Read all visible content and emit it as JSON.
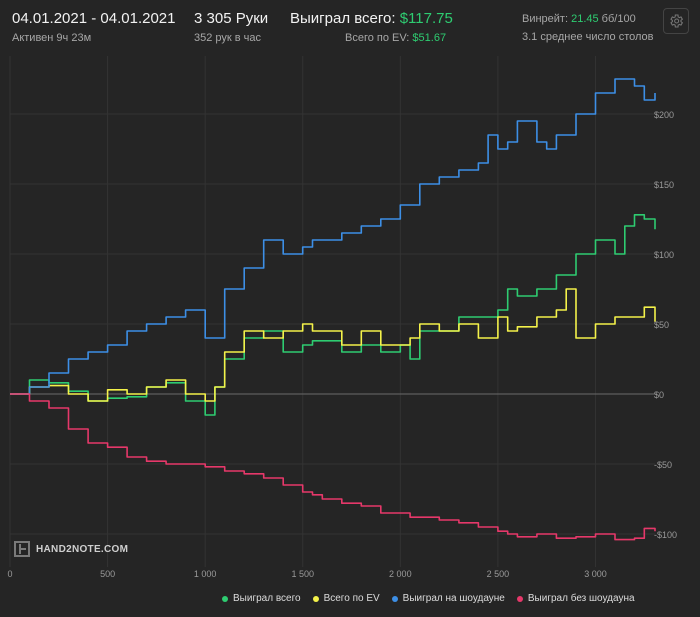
{
  "header": {
    "date_range": "04.01.2021 - 04.01.2021",
    "active": "Активен 9ч 23м",
    "hands": "3 305 Руки",
    "hands_per_hour": "352 рук в час",
    "won_label": "Выиграл всего: ",
    "won_value": "$117.75",
    "ev_label": "Всего по EV: ",
    "ev_value": "$51.67",
    "winrate_label": "Винрейт: ",
    "winrate_value": "21.45",
    "winrate_unit": " бб/100",
    "tables": "3.1 среднее число столов"
  },
  "logo_text": "HAND2NOTE.COM",
  "colors": {
    "background": "#252525",
    "green": "#2ecc71",
    "yellow": "#f4f24a",
    "blue": "#3d8fe6",
    "pink": "#e6386a"
  },
  "chart_data": {
    "type": "line",
    "xlim": [
      0,
      3305
    ],
    "ylim": [
      -112,
      238
    ],
    "x_ticks": [
      0,
      500,
      1000,
      1500,
      2000,
      2500,
      3000
    ],
    "x_tick_labels": [
      "0",
      "500",
      "1 000",
      "1 500",
      "2 000",
      "2 500",
      "3 000"
    ],
    "y_ticks": [
      200,
      150,
      100,
      50,
      0,
      -50,
      -100
    ],
    "y_tick_labels": [
      "$200",
      "$150",
      "$100",
      "$50",
      "$0",
      "-$50",
      "-$100"
    ],
    "grid": true,
    "legend": "bottom-right",
    "series": [
      {
        "name": "Выиграл всего",
        "color": "#2ecc71",
        "x": [
          0,
          100,
          200,
          300,
          400,
          500,
          600,
          700,
          800,
          900,
          1000,
          1050,
          1100,
          1200,
          1300,
          1400,
          1500,
          1550,
          1600,
          1700,
          1800,
          1900,
          2000,
          2050,
          2100,
          2200,
          2300,
          2400,
          2500,
          2550,
          2600,
          2700,
          2800,
          2900,
          3000,
          3100,
          3150,
          3200,
          3250,
          3305
        ],
        "y": [
          0,
          10,
          8,
          2,
          -5,
          -3,
          -2,
          5,
          8,
          -5,
          -15,
          5,
          25,
          40,
          45,
          30,
          35,
          38,
          38,
          30,
          35,
          30,
          35,
          25,
          45,
          45,
          55,
          55,
          60,
          75,
          70,
          75,
          85,
          100,
          110,
          100,
          120,
          128,
          125,
          117.75
        ]
      },
      {
        "name": "Всего по EV",
        "color": "#f4f24a",
        "x": [
          0,
          100,
          200,
          300,
          400,
          500,
          600,
          700,
          800,
          900,
          1000,
          1050,
          1100,
          1200,
          1300,
          1400,
          1500,
          1550,
          1600,
          1700,
          1800,
          1900,
          2000,
          2050,
          2100,
          2200,
          2300,
          2400,
          2500,
          2550,
          2600,
          2700,
          2800,
          2850,
          2900,
          3000,
          3100,
          3200,
          3250,
          3305
        ],
        "y": [
          0,
          5,
          6,
          0,
          -5,
          3,
          0,
          5,
          10,
          0,
          -5,
          5,
          30,
          45,
          40,
          45,
          50,
          45,
          45,
          35,
          45,
          35,
          35,
          40,
          50,
          45,
          50,
          40,
          55,
          45,
          48,
          55,
          60,
          75,
          40,
          50,
          55,
          55,
          62,
          51.67
        ]
      },
      {
        "name": "Выиграл на шоудауне",
        "color": "#3d8fe6",
        "x": [
          0,
          100,
          200,
          300,
          400,
          500,
          600,
          700,
          800,
          900,
          1000,
          1100,
          1200,
          1300,
          1400,
          1500,
          1550,
          1600,
          1700,
          1800,
          1900,
          2000,
          2100,
          2200,
          2300,
          2400,
          2450,
          2500,
          2550,
          2600,
          2700,
          2750,
          2800,
          2900,
          3000,
          3100,
          3200,
          3250,
          3305
        ],
        "y": [
          0,
          5,
          15,
          25,
          30,
          35,
          45,
          50,
          55,
          60,
          40,
          75,
          90,
          110,
          100,
          105,
          110,
          110,
          115,
          120,
          125,
          135,
          150,
          155,
          160,
          165,
          185,
          175,
          180,
          195,
          180,
          175,
          185,
          200,
          215,
          225,
          220,
          210,
          215
        ]
      },
      {
        "name": "Выиграл без шоудауна",
        "color": "#e6386a",
        "x": [
          0,
          100,
          200,
          300,
          400,
          500,
          600,
          700,
          800,
          900,
          1000,
          1100,
          1200,
          1300,
          1400,
          1500,
          1550,
          1600,
          1700,
          1800,
          1900,
          2000,
          2050,
          2100,
          2200,
          2300,
          2400,
          2500,
          2550,
          2600,
          2700,
          2800,
          2900,
          3000,
          3100,
          3200,
          3250,
          3305
        ],
        "y": [
          0,
          -5,
          -10,
          -25,
          -35,
          -38,
          -45,
          -48,
          -50,
          -50,
          -52,
          -55,
          -57,
          -60,
          -65,
          -70,
          -72,
          -75,
          -78,
          -80,
          -85,
          -85,
          -88,
          -88,
          -90,
          -92,
          -95,
          -98,
          -100,
          -102,
          -100,
          -103,
          -102,
          -100,
          -104,
          -103,
          -96,
          -98
        ]
      }
    ]
  }
}
